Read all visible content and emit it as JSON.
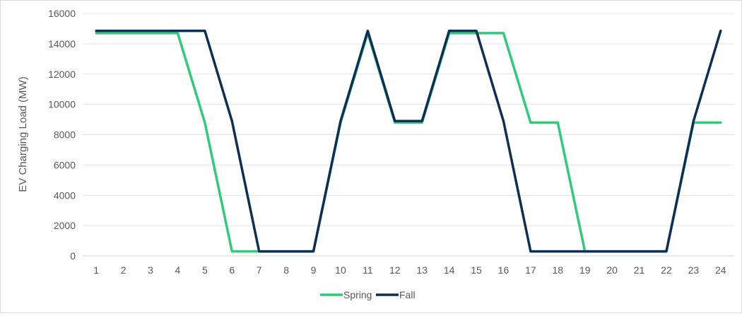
{
  "chart_data": {
    "type": "line",
    "title": "",
    "xlabel": "",
    "ylabel": "EV Charging Load (MW)",
    "ylim": [
      0,
      16000
    ],
    "yticks": [
      0,
      2000,
      4000,
      6000,
      8000,
      10000,
      12000,
      14000,
      16000
    ],
    "grid": true,
    "legend_position": "bottom",
    "categories": [
      "1",
      "2",
      "3",
      "4",
      "5",
      "6",
      "7",
      "8",
      "9",
      "10",
      "11",
      "12",
      "13",
      "14",
      "15",
      "16",
      "17",
      "18",
      "19",
      "20",
      "21",
      "22",
      "23",
      "24"
    ],
    "series": [
      {
        "name": "Spring",
        "color": "#2ecc7a",
        "values": [
          14700,
          14700,
          14700,
          14700,
          8800,
          300,
          300,
          300,
          300,
          8800,
          14700,
          8800,
          8800,
          14700,
          14700,
          14700,
          8800,
          8800,
          300,
          300,
          300,
          300,
          8800,
          8800
        ]
      },
      {
        "name": "Fall",
        "color": "#0d2f55",
        "values": [
          14850,
          14850,
          14850,
          14850,
          14850,
          8900,
          300,
          300,
          300,
          8900,
          14850,
          8900,
          8900,
          14850,
          14850,
          8900,
          300,
          300,
          300,
          300,
          300,
          300,
          8900,
          14850
        ]
      }
    ]
  }
}
